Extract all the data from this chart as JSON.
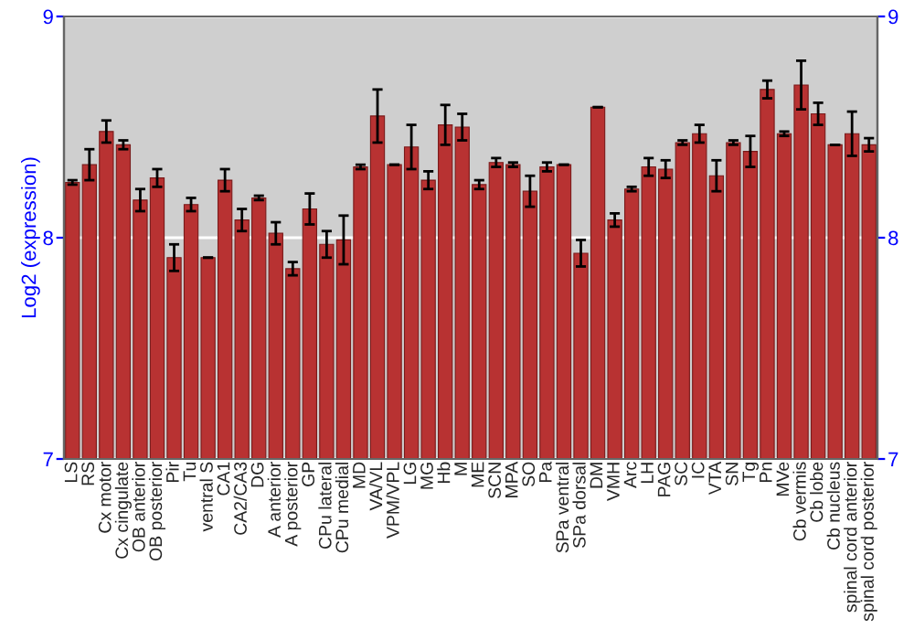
{
  "chart_data": {
    "type": "bar",
    "ylabel": "Log2 (expression)",
    "categories": [
      "LS",
      "RS",
      "Cx motor",
      "Cx cingulate",
      "OB anterior",
      "OB posterior",
      "Pir",
      "Tu",
      "ventral S",
      "CA1",
      "CA2/CA3",
      "DG",
      "A anterior",
      "A posterior",
      "GP",
      "CPu lateral",
      "CPu medial",
      "MD",
      "VA/VL",
      "VPM/VPL",
      "LG",
      "MG",
      "Hb",
      "M",
      "ME",
      "SCN",
      "MPA",
      "SO",
      "Pa",
      "SPa ventral",
      "SPa dorsal",
      "DM",
      "VMH",
      "Arc",
      "LH",
      "PAG",
      "SC",
      "IC",
      "VTA",
      "SN",
      "Tg",
      "Pn",
      "MVe",
      "Cb vermis",
      "Cb lobe",
      "Cb nucleus",
      "spinal cord anterior",
      "spinal cord posterior"
    ],
    "values": [
      8.25,
      8.33,
      8.48,
      8.42,
      8.17,
      8.27,
      7.91,
      8.15,
      7.91,
      8.26,
      8.08,
      8.18,
      8.02,
      7.86,
      8.13,
      7.97,
      7.99,
      8.32,
      8.55,
      8.33,
      8.41,
      8.26,
      8.51,
      8.5,
      8.24,
      8.34,
      8.33,
      8.21,
      8.32,
      8.33,
      7.93,
      8.59,
      8.08,
      8.22,
      8.32,
      8.31,
      8.43,
      8.47,
      8.28,
      8.43,
      8.39,
      8.67,
      8.47,
      8.69,
      8.56,
      8.42,
      8.47,
      8.42
    ],
    "errors": [
      0.01,
      0.07,
      0.05,
      0.02,
      0.05,
      0.04,
      0.06,
      0.03,
      0,
      0.05,
      0.05,
      0.01,
      0.05,
      0.03,
      0.07,
      0.06,
      0.11,
      0.01,
      0.12,
      0,
      0.1,
      0.04,
      0.09,
      0.06,
      0.02,
      0.02,
      0.01,
      0.07,
      0.02,
      0,
      0.06,
      0,
      0.03,
      0.01,
      0.04,
      0.04,
      0.01,
      0.04,
      0.07,
      0.01,
      0.07,
      0.04,
      0.01,
      0.11,
      0.05,
      0,
      0.1,
      0.03
    ],
    "color": "#b83232",
    "ylim": [
      7,
      9
    ],
    "yticks": [
      7,
      8,
      9
    ],
    "y2lim": [
      7,
      9
    ],
    "y2ticks": [
      7,
      8,
      9
    ],
    "grid": "y",
    "legend": false
  }
}
